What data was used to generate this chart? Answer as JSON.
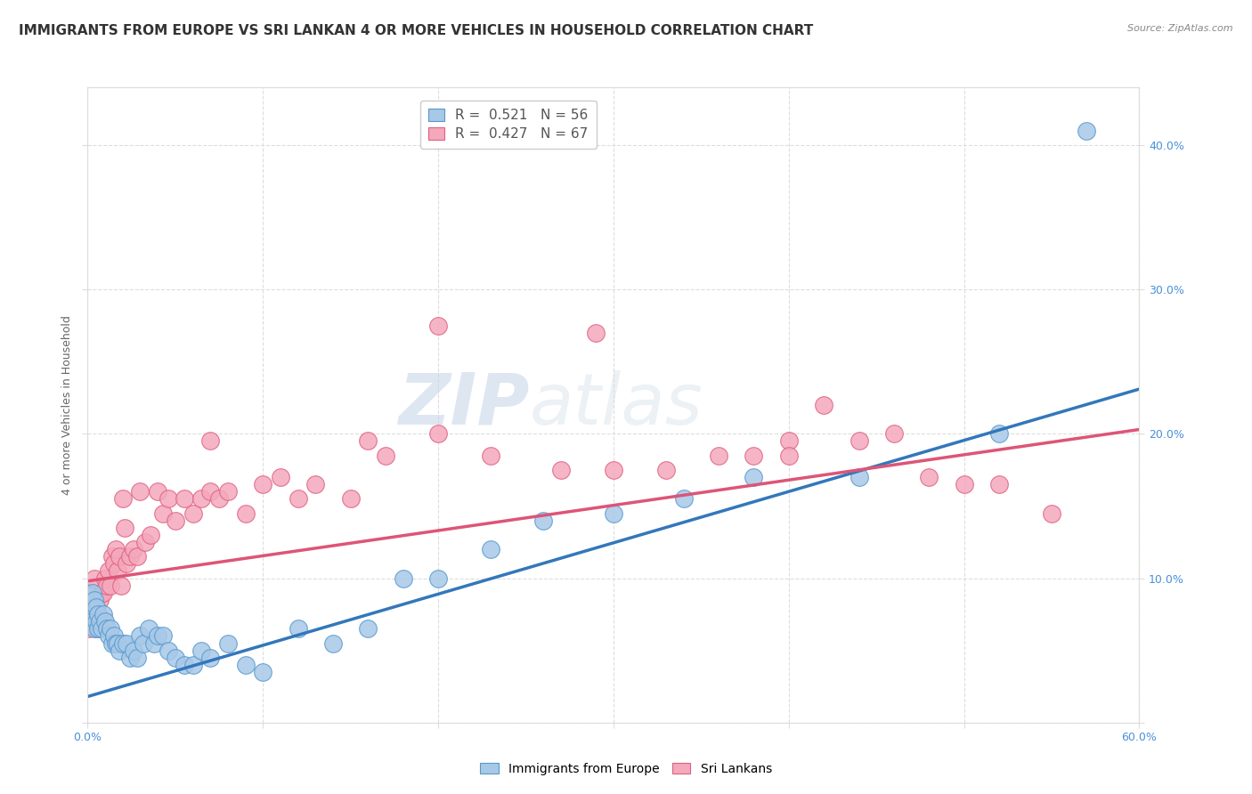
{
  "title": "IMMIGRANTS FROM EUROPE VS SRI LANKAN 4 OR MORE VEHICLES IN HOUSEHOLD CORRELATION CHART",
  "source": "Source: ZipAtlas.com",
  "ylabel": "4 or more Vehicles in Household",
  "xlim": [
    0.0,
    0.6
  ],
  "ylim": [
    0.0,
    0.44
  ],
  "xticks": [
    0.0,
    0.1,
    0.2,
    0.3,
    0.4,
    0.5,
    0.6
  ],
  "yticks": [
    0.0,
    0.1,
    0.2,
    0.3,
    0.4
  ],
  "xticklabels": [
    "0.0%",
    "",
    "",
    "",
    "",
    "",
    "60.0%"
  ],
  "yticklabels_right": [
    "",
    "10.0%",
    "20.0%",
    "30.0%",
    "40.0%"
  ],
  "blue_color": "#a8c8e8",
  "pink_color": "#f4a8bc",
  "blue_edge_color": "#5599cc",
  "pink_edge_color": "#e06080",
  "blue_line_color": "#3377bb",
  "pink_line_color": "#dd5577",
  "blue_R": 0.521,
  "blue_N": 56,
  "pink_R": 0.427,
  "pink_N": 67,
  "blue_slope": 0.355,
  "blue_intercept": 0.018,
  "pink_slope": 0.175,
  "pink_intercept": 0.098,
  "blue_x": [
    0.001,
    0.002,
    0.002,
    0.003,
    0.003,
    0.004,
    0.004,
    0.005,
    0.005,
    0.006,
    0.006,
    0.007,
    0.008,
    0.009,
    0.01,
    0.011,
    0.012,
    0.013,
    0.014,
    0.015,
    0.016,
    0.017,
    0.018,
    0.02,
    0.022,
    0.024,
    0.026,
    0.028,
    0.03,
    0.032,
    0.035,
    0.038,
    0.04,
    0.043,
    0.046,
    0.05,
    0.055,
    0.06,
    0.065,
    0.07,
    0.08,
    0.09,
    0.1,
    0.12,
    0.14,
    0.16,
    0.18,
    0.2,
    0.23,
    0.26,
    0.3,
    0.34,
    0.38,
    0.44,
    0.52,
    0.57
  ],
  "blue_y": [
    0.088,
    0.082,
    0.075,
    0.09,
    0.07,
    0.085,
    0.065,
    0.08,
    0.07,
    0.075,
    0.065,
    0.07,
    0.065,
    0.075,
    0.07,
    0.065,
    0.06,
    0.065,
    0.055,
    0.06,
    0.055,
    0.055,
    0.05,
    0.055,
    0.055,
    0.045,
    0.05,
    0.045,
    0.06,
    0.055,
    0.065,
    0.055,
    0.06,
    0.06,
    0.05,
    0.045,
    0.04,
    0.04,
    0.05,
    0.045,
    0.055,
    0.04,
    0.035,
    0.065,
    0.055,
    0.065,
    0.1,
    0.1,
    0.12,
    0.14,
    0.145,
    0.155,
    0.17,
    0.17,
    0.2,
    0.41
  ],
  "pink_x": [
    0.001,
    0.002,
    0.003,
    0.003,
    0.004,
    0.005,
    0.005,
    0.006,
    0.007,
    0.008,
    0.009,
    0.01,
    0.011,
    0.012,
    0.013,
    0.014,
    0.015,
    0.016,
    0.017,
    0.018,
    0.019,
    0.02,
    0.021,
    0.022,
    0.024,
    0.026,
    0.028,
    0.03,
    0.033,
    0.036,
    0.04,
    0.043,
    0.046,
    0.05,
    0.055,
    0.06,
    0.065,
    0.07,
    0.075,
    0.08,
    0.09,
    0.1,
    0.11,
    0.12,
    0.13,
    0.15,
    0.17,
    0.2,
    0.23,
    0.27,
    0.3,
    0.33,
    0.36,
    0.38,
    0.4,
    0.42,
    0.44,
    0.46,
    0.48,
    0.5,
    0.52,
    0.55,
    0.07,
    0.16,
    0.2,
    0.29,
    0.4
  ],
  "pink_y": [
    0.065,
    0.09,
    0.085,
    0.075,
    0.1,
    0.08,
    0.065,
    0.075,
    0.085,
    0.09,
    0.09,
    0.1,
    0.095,
    0.105,
    0.095,
    0.115,
    0.11,
    0.12,
    0.105,
    0.115,
    0.095,
    0.155,
    0.135,
    0.11,
    0.115,
    0.12,
    0.115,
    0.16,
    0.125,
    0.13,
    0.16,
    0.145,
    0.155,
    0.14,
    0.155,
    0.145,
    0.155,
    0.16,
    0.155,
    0.16,
    0.145,
    0.165,
    0.17,
    0.155,
    0.165,
    0.155,
    0.185,
    0.2,
    0.185,
    0.175,
    0.175,
    0.175,
    0.185,
    0.185,
    0.195,
    0.22,
    0.195,
    0.2,
    0.17,
    0.165,
    0.165,
    0.145,
    0.195,
    0.195,
    0.275,
    0.27,
    0.185
  ],
  "watermark_zip": "ZIP",
  "watermark_atlas": "atlas",
  "background_color": "#ffffff",
  "grid_color": "#dddddd",
  "title_color": "#333333",
  "tick_color": "#4a90d9",
  "ylabel_color": "#666666",
  "title_fontsize": 11,
  "axis_label_fontsize": 9,
  "tick_fontsize": 9,
  "legend_fontsize": 11
}
